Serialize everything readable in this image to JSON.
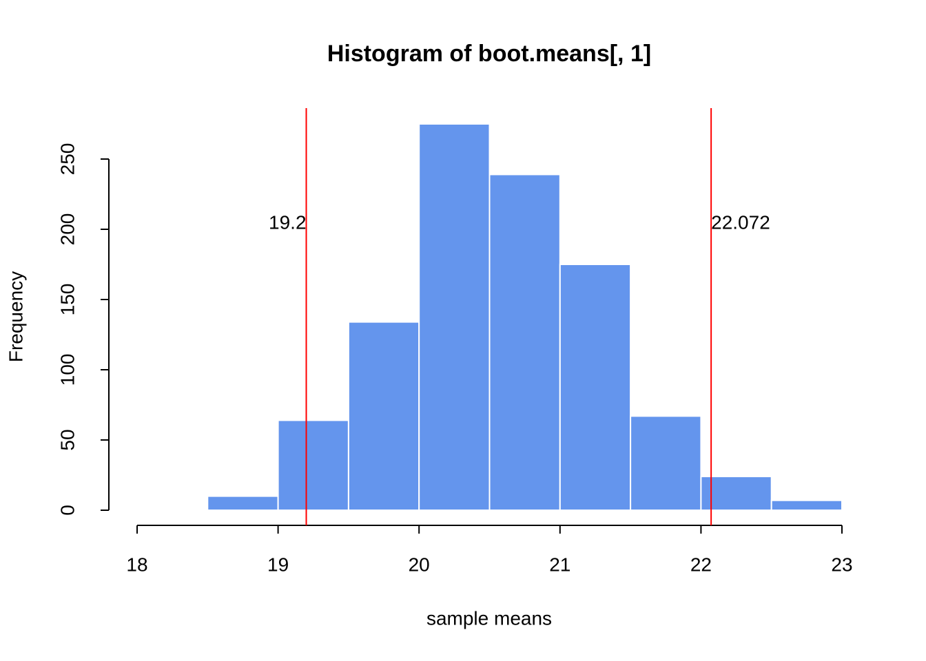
{
  "chart_data": {
    "type": "histogram",
    "title": "Histogram of boot.means[, 1]",
    "x_label": "sample means",
    "y_label": "Frequency",
    "bins": [
      18,
      18.5,
      19,
      19.5,
      20,
      20.5,
      21,
      21.5,
      22,
      22.5,
      23
    ],
    "counts": [
      0,
      10,
      64,
      134,
      275,
      239,
      175,
      67,
      24,
      7
    ],
    "color": "#6495ed",
    "edge_color": "#ffffff",
    "xlim": [
      18,
      23
    ],
    "xticks": [
      18,
      19,
      20,
      21,
      22,
      23
    ],
    "ylim": [
      0,
      275
    ],
    "yticks": [
      0,
      50,
      100,
      150,
      200,
      250
    ],
    "vlines": [
      19.2,
      22.072
    ],
    "vline_color": "#ff0000"
  }
}
